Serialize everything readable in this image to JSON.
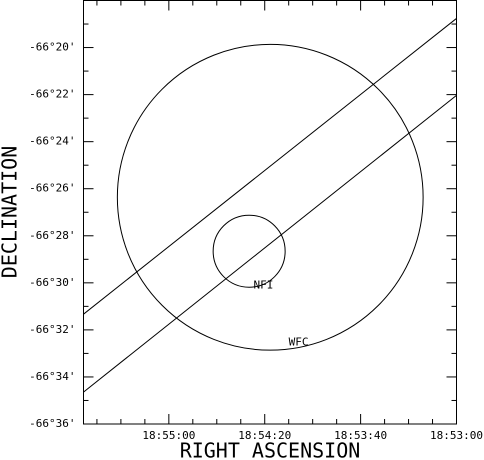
{
  "chart_data": {
    "type": "sky",
    "xlabel": "RIGHT ASCENSION",
    "ylabel": "DECLINATION",
    "xlim": [
      68135.6,
      67980
    ],
    "ylim": [
      -66.6,
      -66.3
    ],
    "xticks": [
      {
        "value": 68100,
        "label": "18:55:00"
      },
      {
        "value": 68060,
        "label": "18:54:20"
      },
      {
        "value": 68020,
        "label": "18:53:40"
      },
      {
        "value": 67980,
        "label": "18:53:00"
      }
    ],
    "yticks": [
      {
        "value": -66.33333,
        "label": "-66°20'"
      },
      {
        "value": -66.36667,
        "label": "-66°22'"
      },
      {
        "value": -66.4,
        "label": "-66°24'"
      },
      {
        "value": -66.43333,
        "label": "-66°26'"
      },
      {
        "value": -66.46667,
        "label": "-66°28'"
      },
      {
        "value": -66.5,
        "label": "-66°30'"
      },
      {
        "value": -66.53333,
        "label": "-66°32'"
      },
      {
        "value": -66.56667,
        "label": "-66°34'"
      },
      {
        "value": -66.6,
        "label": "-66°36'"
      }
    ],
    "xminorticks": [
      68130,
      68120,
      68110,
      68090,
      68080,
      68070,
      68050,
      68040,
      68030,
      68010,
      68000,
      67990
    ],
    "yminorticks": [
      -66.31667,
      -66.35,
      -66.38333,
      -66.41667,
      -66.45,
      -66.48333,
      -66.51667,
      -66.55,
      -66.58333
    ],
    "circles": [
      {
        "label": "WFC",
        "ra": 68057.7,
        "dec": -66.4394,
        "radius": 0.1083
      },
      {
        "label": "NFI",
        "ra": 68066.5,
        "dec": -66.4776,
        "radius": 0.0255
      }
    ],
    "lines": [
      {
        "ra": [
          68135.6,
          67980
        ],
        "dec": [
          -66.5222,
          -66.3127
        ]
      },
      {
        "ra": [
          68135.6,
          67980
        ],
        "dec": [
          -66.5774,
          -66.3672
        ]
      }
    ],
    "color": "#000000"
  }
}
